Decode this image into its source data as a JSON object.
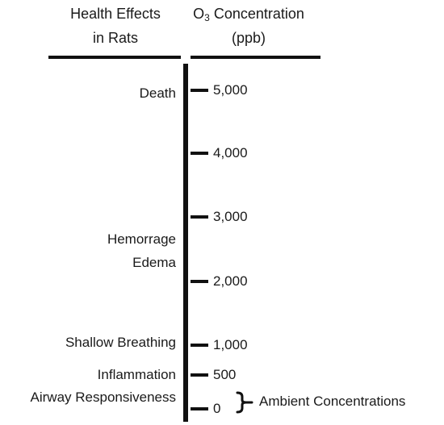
{
  "headers": {
    "left_line1": "Health Effects",
    "left_line2": "in Rats",
    "right_prefix": "O",
    "right_subscript": "3",
    "right_suffix": " Concentration",
    "right_line2": "(ppb)"
  },
  "scale": {
    "ticks": [
      {
        "value": 5000,
        "label": "5,000"
      },
      {
        "value": 4000,
        "label": "4,000"
      },
      {
        "value": 3000,
        "label": "3,000"
      },
      {
        "value": 2000,
        "label": "2,000"
      },
      {
        "value": 1000,
        "label": "1,000"
      },
      {
        "value": 500,
        "label": "500"
      },
      {
        "value": 0,
        "label": "0"
      }
    ]
  },
  "effects": {
    "death": "Death",
    "hemorrage": "Hemorrage",
    "edema": "Edema",
    "shallow_breathing": "Shallow Breathing",
    "inflammation": "Inflammation",
    "airway": "Airway Responsiveness"
  },
  "ambient": {
    "label": "Ambient Concentrations"
  }
}
